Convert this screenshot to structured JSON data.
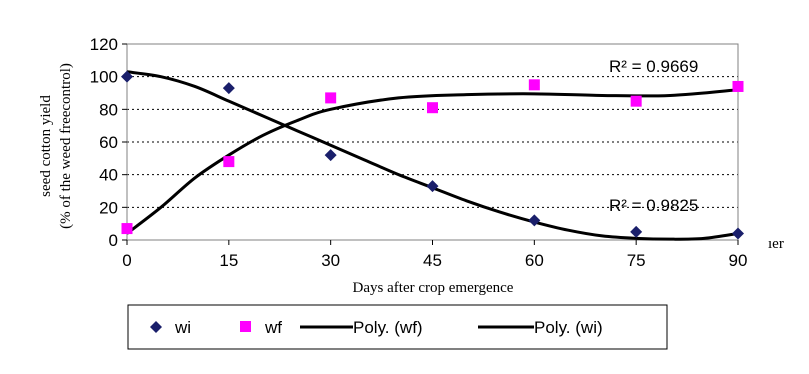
{
  "chart_data": {
    "type": "scatter",
    "xlabel": "Days after crop emergence",
    "ylabel_line1": "seed cotton yield",
    "ylabel_line2": "(% of the weed freecontrol)",
    "x_ticks": [
      0,
      15,
      30,
      45,
      60,
      75,
      90
    ],
    "y_ticks": [
      0,
      20,
      40,
      60,
      80,
      100,
      120
    ],
    "xlim": [
      0,
      90
    ],
    "ylim": [
      0,
      120
    ],
    "grid": "horizontal dashed",
    "legend_position": "bottom",
    "series": [
      {
        "name": "wi",
        "marker": "diamond",
        "color": "#1a1f6b",
        "x": [
          0,
          15,
          30,
          45,
          60,
          75,
          90
        ],
        "y": [
          100,
          93,
          52,
          33,
          12,
          5,
          4
        ]
      },
      {
        "name": "wf",
        "marker": "square",
        "color": "#ff00ff",
        "x": [
          0,
          15,
          30,
          45,
          60,
          75,
          90
        ],
        "y": [
          7,
          48,
          87,
          81,
          95,
          85,
          94
        ]
      }
    ],
    "trendlines": [
      {
        "name": "Poly. (wf)",
        "color": "#000000",
        "r2_label": "R² = 0.9669",
        "points": [
          [
            0,
            4
          ],
          [
            5,
            20
          ],
          [
            10,
            38
          ],
          [
            15,
            52
          ],
          [
            20,
            64
          ],
          [
            25,
            73
          ],
          [
            30,
            80
          ],
          [
            40,
            87
          ],
          [
            50,
            89
          ],
          [
            60,
            89.5
          ],
          [
            70,
            88.5
          ],
          [
            80,
            88.5
          ],
          [
            90,
            92
          ]
        ]
      },
      {
        "name": "Poly. (wi)",
        "color": "#000000",
        "r2_label": "R² = 0.9825",
        "points": [
          [
            0,
            103
          ],
          [
            5,
            100
          ],
          [
            10,
            94
          ],
          [
            15,
            85
          ],
          [
            20,
            76
          ],
          [
            25,
            67
          ],
          [
            30,
            58
          ],
          [
            35,
            49
          ],
          [
            40,
            40
          ],
          [
            45,
            32
          ],
          [
            50,
            24
          ],
          [
            55,
            17
          ],
          [
            60,
            11
          ],
          [
            65,
            6
          ],
          [
            70,
            2.5
          ],
          [
            75,
            1
          ],
          [
            80,
            0.5
          ],
          [
            85,
            1
          ],
          [
            90,
            4
          ]
        ]
      }
    ],
    "stray_text": "ıer"
  }
}
